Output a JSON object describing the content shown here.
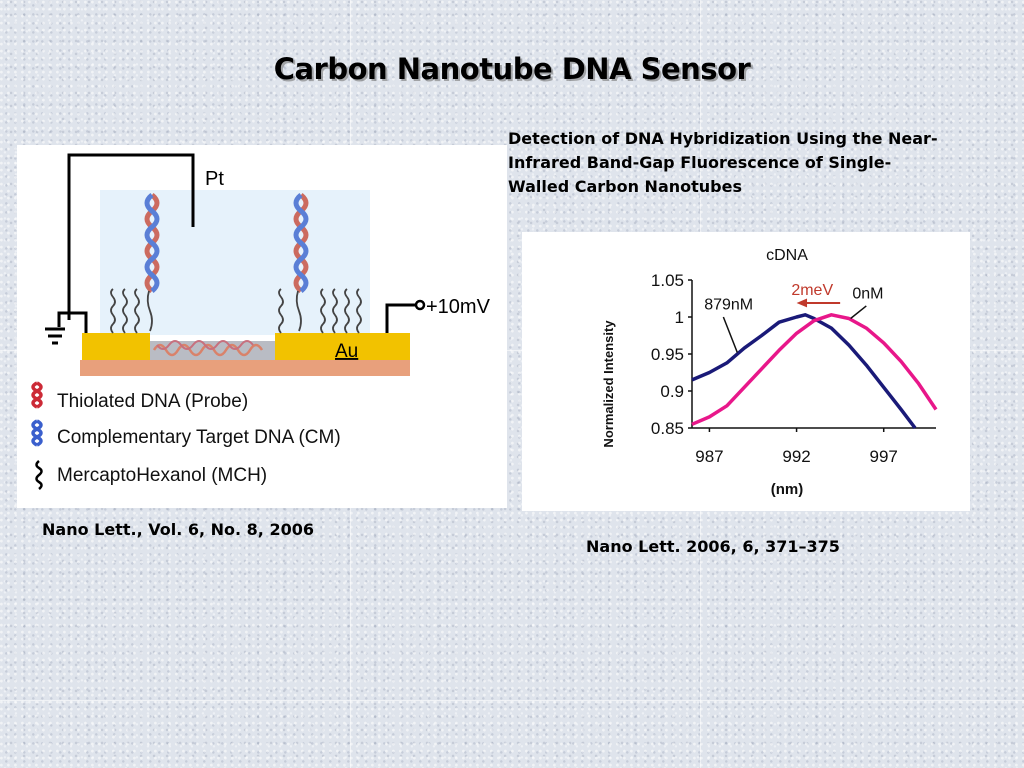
{
  "slide": {
    "title": "Carbon Nanotube DNA Sensor",
    "description_lines": [
      "Detection of DNA Hybridization Using the Near-",
      "Infrared Band-Gap Fluorescence of Single-",
      "Walled Carbon Nanotubes"
    ],
    "left_caption": "Nano Lett., Vol. 6, No. 8, 2006",
    "right_caption": "Nano Lett. 2006, 6, 371–375"
  },
  "diagram": {
    "label_pt": "Pt",
    "label_voltage": "+10mV",
    "label_au": "Au",
    "legend": [
      {
        "label": "Thiolated DNA (Probe)",
        "icon": "red-helix-icon",
        "color": "#cc2a36"
      },
      {
        "label": "Complementary Target DNA (CM)",
        "icon": "blue-helix-icon",
        "color": "#3a5fcd"
      },
      {
        "label": "MercaptoHexanol (MCH)",
        "icon": "black-squiggle-icon",
        "color": "#000000"
      }
    ],
    "colors": {
      "gold": "#f2c200",
      "substrate": "#e8a07c",
      "solution": "#e6f2fb"
    }
  },
  "chart_data": {
    "type": "line",
    "title": "cDNA",
    "xlabel": "(nm)",
    "ylabel": "Normalized Intensity",
    "xlim": [
      986,
      1000
    ],
    "ylim": [
      0.85,
      1.05
    ],
    "xticks": [
      987,
      992,
      997
    ],
    "yticks": [
      0.85,
      0.9,
      0.95,
      1,
      1.05
    ],
    "ytick_labels": [
      "0.85",
      "0.9",
      "0.95",
      "1",
      "1.05"
    ],
    "annotations": [
      "2meV"
    ],
    "series": [
      {
        "name": "879nM",
        "color": "#1a1a78",
        "x": [
          986,
          987,
          988,
          989,
          990,
          991,
          992,
          992.5,
          993,
          994,
          995,
          996,
          997,
          998,
          998.8
        ],
        "y": [
          0.915,
          0.925,
          0.938,
          0.958,
          0.975,
          0.993,
          1.0,
          1.003,
          0.998,
          0.985,
          0.962,
          0.935,
          0.905,
          0.875,
          0.85
        ]
      },
      {
        "name": "0nM",
        "color": "#e8178a",
        "x": [
          986,
          987,
          988,
          989,
          990,
          991,
          992,
          993,
          994,
          995,
          996,
          997,
          998,
          999,
          1000
        ],
        "y": [
          0.855,
          0.865,
          0.88,
          0.905,
          0.93,
          0.955,
          0.978,
          0.995,
          1.003,
          0.998,
          0.985,
          0.965,
          0.94,
          0.91,
          0.875
        ]
      }
    ]
  }
}
